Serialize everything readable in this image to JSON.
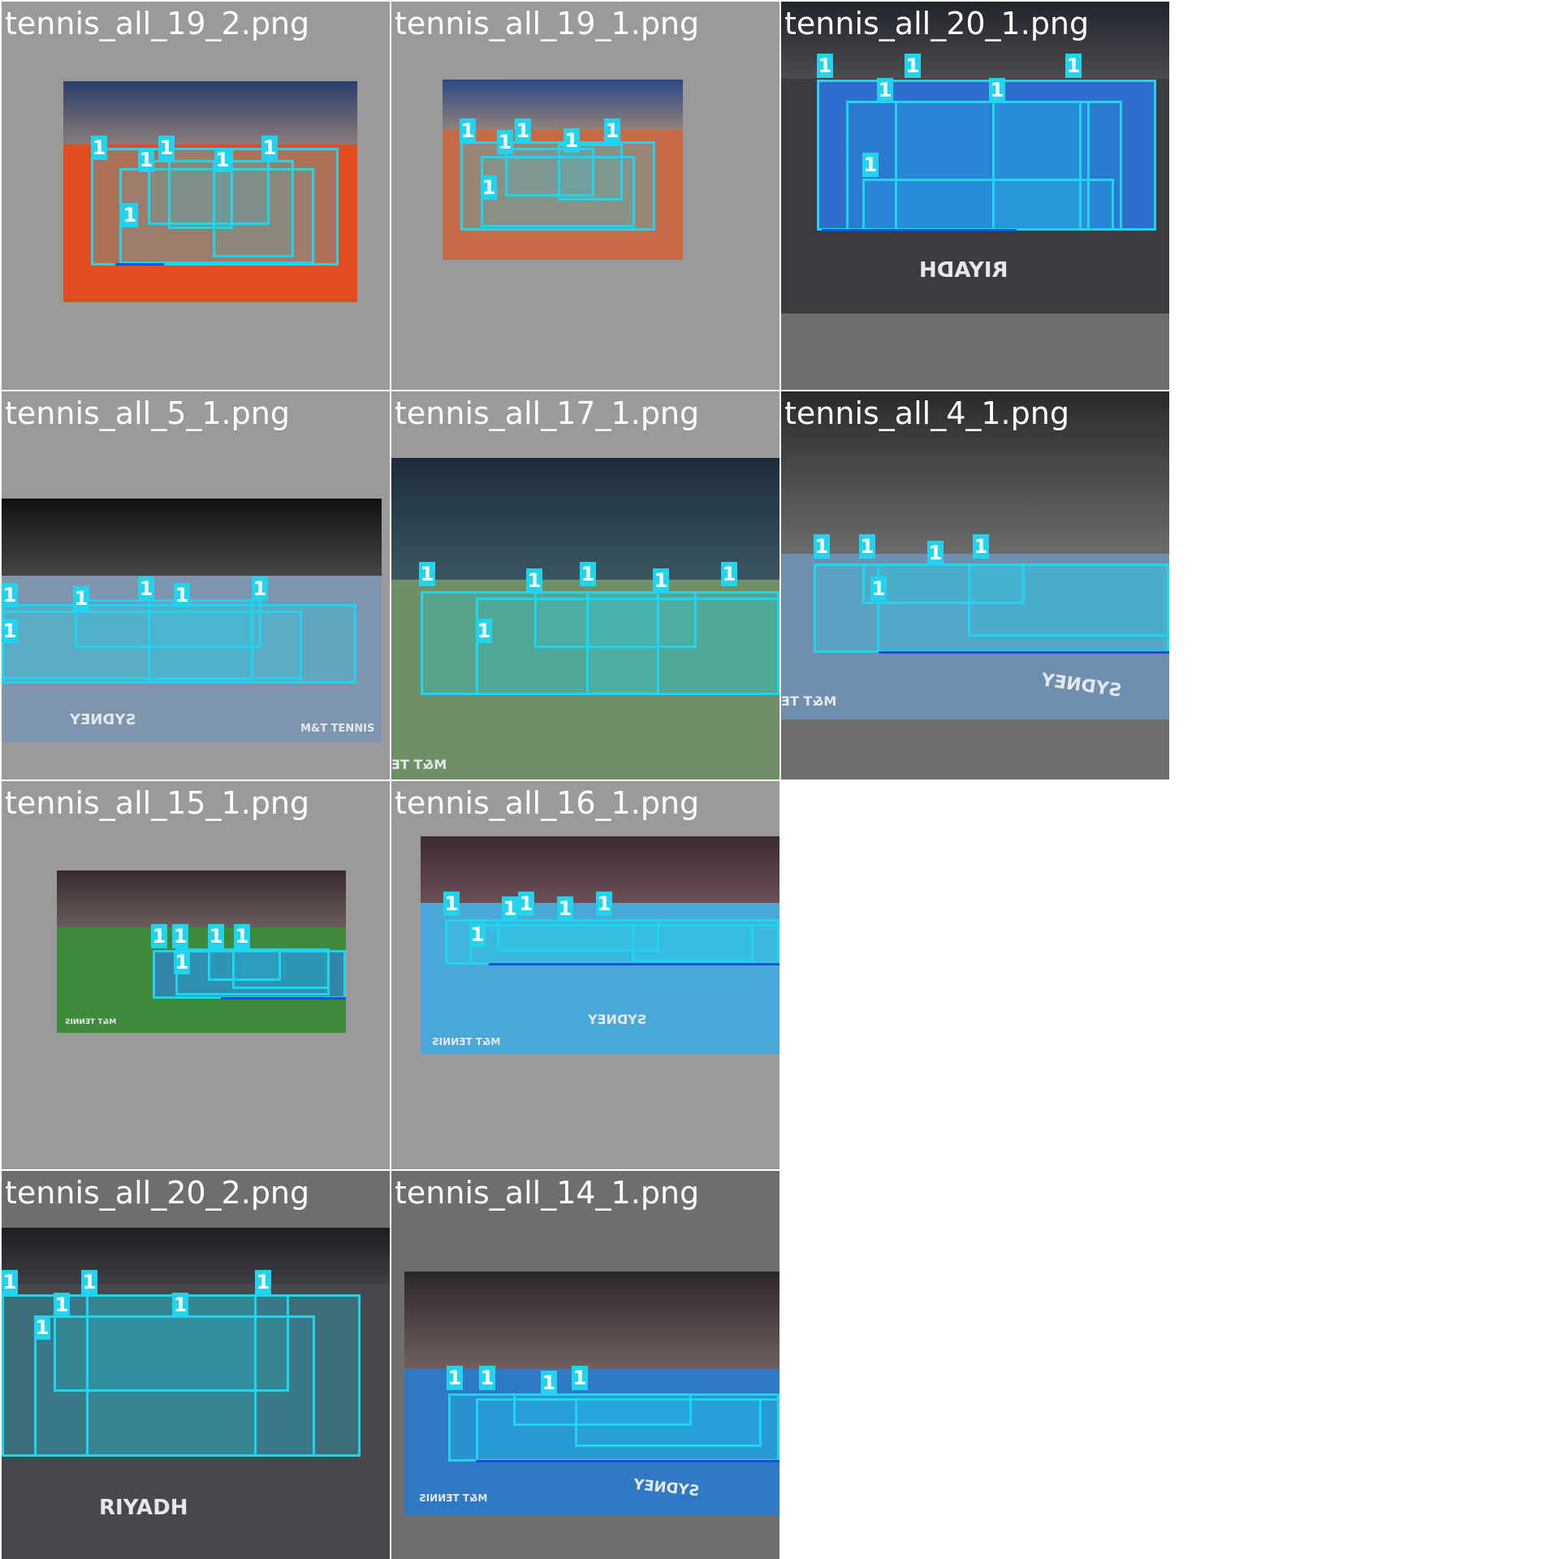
{
  "mosaic": {
    "tiles": [
      {
        "id": "t0",
        "title": "tennis_all_19_2.png",
        "box_label": "1",
        "box_count": 7
      },
      {
        "id": "t1",
        "title": "tennis_all_19_1.png",
        "box_label": "1",
        "box_count": 7
      },
      {
        "id": "t2",
        "title": "tennis_all_20_1.png",
        "box_label": "1",
        "box_count": 7
      },
      {
        "id": "t3",
        "title": "tennis_all_5_1.png",
        "box_label": "1",
        "box_count": 7
      },
      {
        "id": "t4",
        "title": "tennis_all_17_1.png",
        "box_label": "1",
        "box_count": 7
      },
      {
        "id": "t5",
        "title": "tennis_all_4_1.png",
        "box_label": "1",
        "box_count": 6
      },
      {
        "id": "t6",
        "title": "tennis_all_15_1.png",
        "box_label": "1",
        "box_count": 6
      },
      {
        "id": "t7",
        "title": "tennis_all_16_1.png",
        "box_label": "1",
        "box_count": 6
      },
      {
        "id": "t8",
        "title": "tennis_all_20_2.png",
        "box_label": "1",
        "box_count": 7
      },
      {
        "id": "t9",
        "title": "tennis_all_14_1.png",
        "box_label": "1",
        "box_count": 6
      }
    ],
    "overlay_texts": {
      "t2_sponsor": "RIYADH",
      "t3_brand": "M&T TENNIS",
      "t3_court": "SYDNEY",
      "t4_brand": "M&T TE",
      "t5_brand": "M&T TE",
      "t5_court": "SYDNEY",
      "t6_brand": "M&T TENNIS",
      "t7_brand": "M&T TENNIS",
      "t7_court": "SYDNEY",
      "t8_sponsor": "RIYADH",
      "t9_brand": "M&T TENNIS",
      "t9_court": "SYDNEY"
    }
  },
  "colors": {
    "box": "#22d3ee",
    "baseline": "#1d4ed8"
  }
}
